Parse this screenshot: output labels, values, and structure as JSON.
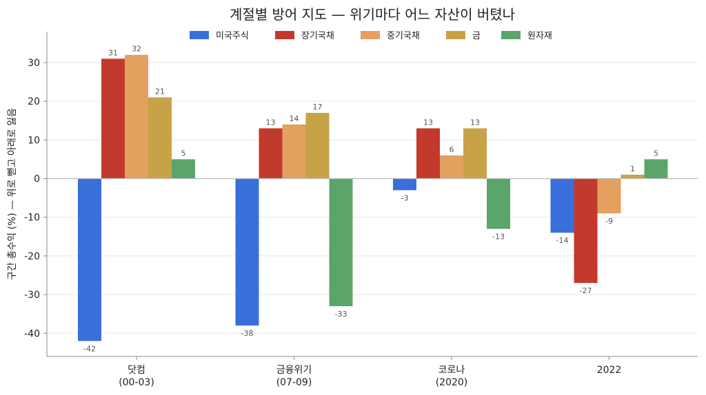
{
  "chart_data": {
    "type": "bar",
    "title": "계절별 방어 지도 — 위기마다 어느 자산이 버텼나",
    "xlabel": "",
    "ylabel": "구간 총수익 (%) — 위로 뻗고 아래로 잃음",
    "ylim": [
      -46,
      38
    ],
    "yticks": [
      -40,
      -30,
      -20,
      -10,
      0,
      10,
      20,
      30
    ],
    "grid": "horizontal",
    "legend_position": "top-center",
    "categories": [
      [
        "닷컴",
        "(00-03)"
      ],
      [
        "금융위기",
        "(07-09)"
      ],
      [
        "코로나",
        "(2020)"
      ],
      [
        "2022"
      ]
    ],
    "series": [
      {
        "name": "미국주식",
        "color": "#3A6FDB",
        "values": [
          -42,
          -38,
          -3,
          -14
        ]
      },
      {
        "name": "장기국채",
        "color": "#C23A2B",
        "values": [
          31,
          13,
          13,
          -27
        ]
      },
      {
        "name": "중기국채",
        "color": "#E3A05F",
        "values": [
          32,
          14,
          6,
          -9
        ]
      },
      {
        "name": "금",
        "color": "#C8A246",
        "values": [
          21,
          17,
          13,
          1
        ]
      },
      {
        "name": "원자재",
        "color": "#5BA46A",
        "values": [
          5,
          -33,
          -13,
          5
        ]
      }
    ]
  }
}
